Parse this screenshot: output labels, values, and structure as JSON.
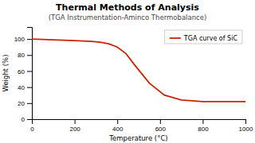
{
  "chart_data": {
    "type": "line",
    "title": "Thermal Methods of Analysis",
    "subtitle": "(TGA Instrumentation-Aminco Thermobalance)",
    "x_label": "Temperature (°C)",
    "y_label": "Weight (%)",
    "x": [
      0,
      100,
      200,
      280,
      320,
      360,
      400,
      440,
      480,
      550,
      620,
      700,
      800,
      900,
      1000
    ],
    "series": [
      {
        "name": "TGA curve of SiC",
        "color": "#cc2200",
        "values": [
          100,
          99,
          98,
          97,
          96,
          94,
          90,
          82,
          68,
          45,
          30,
          24,
          22,
          22,
          22
        ]
      }
    ],
    "xlim": [
      0,
      1000
    ],
    "ylim": [
      0,
      115
    ],
    "xticks": [
      0,
      200,
      400,
      600,
      800,
      1000
    ],
    "yticks": [
      0,
      20,
      40,
      60,
      80,
      100
    ],
    "legend": "upper right",
    "grid": false
  }
}
